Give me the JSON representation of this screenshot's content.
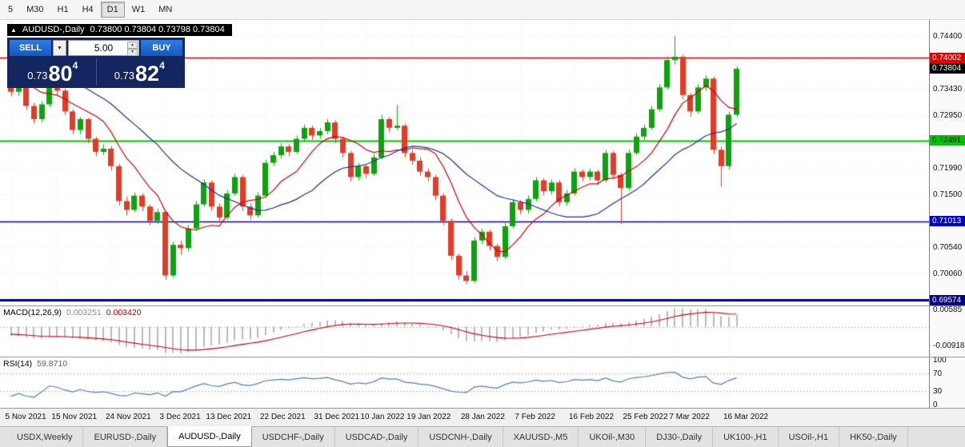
{
  "toolbar": {
    "periods": [
      {
        "label": "5",
        "active": false
      },
      {
        "label": "M30",
        "active": false
      },
      {
        "label": "H1",
        "active": false
      },
      {
        "label": "H4",
        "active": false
      },
      {
        "label": "D1",
        "active": true
      },
      {
        "label": "W1",
        "active": false
      },
      {
        "label": "MN",
        "active": false
      }
    ]
  },
  "window": {
    "title_symbol": "AUDUSD-,Daily",
    "title_ohlc": "0.73800 0.73804 0.73798 0.73804"
  },
  "trade_panel": {
    "sell_label": "SELL",
    "buy_label": "BUY",
    "volume": "5.00",
    "sell_price": {
      "prefix": "0.73",
      "big": "80",
      "sup": "4"
    },
    "buy_price": {
      "prefix": "0.73",
      "big": "82",
      "sup": "4"
    }
  },
  "price_axis": {
    "labels": [
      {
        "text": "0.74400",
        "price": 0.744,
        "style": "plain"
      },
      {
        "text": "0.74002",
        "price": 0.74002,
        "style": "badge",
        "bg": "#e00000",
        "fg": "#ffffff"
      },
      {
        "text": "0.73804",
        "price": 0.73804,
        "style": "badge",
        "bg": "#000000",
        "fg": "#ffffff"
      },
      {
        "text": "0.73430",
        "price": 0.7343,
        "style": "plain"
      },
      {
        "text": "0.72950",
        "price": 0.7295,
        "style": "plain"
      },
      {
        "text": "0.72491",
        "price": 0.72491,
        "style": "badge",
        "bg": "#00c400",
        "fg": "#000000"
      },
      {
        "text": "0.71990",
        "price": 0.7199,
        "style": "plain"
      },
      {
        "text": "0.71500",
        "price": 0.715,
        "style": "plain"
      },
      {
        "text": "0.71013",
        "price": 0.71013,
        "style": "badge",
        "bg": "#0000cc",
        "fg": "#ffffff"
      },
      {
        "text": "0.70540",
        "price": 0.7054,
        "style": "plain"
      },
      {
        "text": "0.70060",
        "price": 0.7006,
        "style": "plain"
      },
      {
        "text": "0.69574",
        "price": 0.69574,
        "style": "badge",
        "bg": "#000080",
        "fg": "#ffffff"
      }
    ]
  },
  "macd_panel": {
    "name": "MACD(12,26,9)",
    "value1": "0.003251",
    "value2": "0.003420",
    "axis_top": "0.00585",
    "axis_bottom": "-0.00918"
  },
  "rsi_panel": {
    "name": "RSI(14)",
    "value": "59.8710",
    "axis": [
      "100",
      "70",
      "30",
      "0"
    ]
  },
  "tabs": [
    {
      "label": "USDX,Weekly",
      "active": false
    },
    {
      "label": "EURUSD-,Daily",
      "active": false
    },
    {
      "label": "AUDUSD-,Daily",
      "active": true
    },
    {
      "label": "USDCHF-,Daily",
      "active": false
    },
    {
      "label": "USDCAD-,Daily",
      "active": false
    },
    {
      "label": "USDCNH-,Daily",
      "active": false
    },
    {
      "label": "XAUUSD-,M5",
      "active": false
    },
    {
      "label": "UKOil-,M30",
      "active": false
    },
    {
      "label": "DJ30-,Daily",
      "active": false
    },
    {
      "label": "UK100-,H1",
      "active": false
    },
    {
      "label": "USOil-,H1",
      "active": false
    },
    {
      "label": "HK50-,Daily",
      "active": false
    }
  ],
  "chart_data": {
    "type": "candlestick",
    "symbol": "AUDUSD-",
    "timeframe": "Daily",
    "current_bid": 0.73804,
    "levels": [
      {
        "price": 0.74002,
        "color": "#e00000",
        "width": 1.3
      },
      {
        "price": 0.72491,
        "color": "#00c400",
        "width": 1.8
      },
      {
        "price": 0.71013,
        "color": "#0000cc",
        "width": 1.3
      },
      {
        "price": 0.69574,
        "color": "#000080",
        "width": 3
      }
    ],
    "grid_prices": [
      0.744,
      0.7392,
      0.7343,
      0.7295,
      0.7247,
      0.7199,
      0.715,
      0.7102,
      0.7054,
      0.7006,
      0.6958
    ],
    "date_labels": [
      {
        "label": "5 Nov 2021",
        "i": 0
      },
      {
        "label": "15 Nov 2021",
        "i": 6
      },
      {
        "label": "24 Nov 2021",
        "i": 13
      },
      {
        "label": "3 Dec 2021",
        "i": 20
      },
      {
        "label": "13 Dec 2021",
        "i": 26
      },
      {
        "label": "22 Dec 2021",
        "i": 33
      },
      {
        "label": "31 Dec 2021",
        "i": 40
      },
      {
        "label": "10 Jan 2022",
        "i": 46
      },
      {
        "label": "19 Jan 2022",
        "i": 52
      },
      {
        "label": "28 Jan 2022",
        "i": 59
      },
      {
        "label": "7 Feb 2022",
        "i": 66
      },
      {
        "label": "16 Feb 2022",
        "i": 73
      },
      {
        "label": "25 Feb 2022",
        "i": 80
      },
      {
        "label": "7 Mar 2022",
        "i": 86
      },
      {
        "label": "16 Mar 2022",
        "i": 93
      }
    ],
    "pre_closes": [
      0.7478,
      0.7496,
      0.7504,
      0.749,
      0.7476,
      0.7464,
      0.7452,
      0.7444,
      0.7452,
      0.7444,
      0.7434,
      0.7428,
      0.7438,
      0.7432,
      0.742,
      0.7412,
      0.7416,
      0.7402,
      0.7394,
      0.7398,
      0.7388,
      0.738,
      0.7384,
      0.7372,
      0.7364,
      0.7356
    ],
    "candles": [
      [
        0.7352,
        0.7362,
        0.733,
        0.7338
      ],
      [
        0.7338,
        0.7354,
        0.733,
        0.7348
      ],
      [
        0.7348,
        0.7352,
        0.7304,
        0.7312
      ],
      [
        0.7312,
        0.7318,
        0.728,
        0.7288
      ],
      [
        0.7288,
        0.732,
        0.7282,
        0.7315
      ],
      [
        0.7315,
        0.7366,
        0.731,
        0.7356
      ],
      [
        0.7356,
        0.7364,
        0.7332,
        0.734
      ],
      [
        0.734,
        0.7344,
        0.7295,
        0.7302
      ],
      [
        0.7302,
        0.7306,
        0.726,
        0.7268
      ],
      [
        0.7268,
        0.7292,
        0.726,
        0.7288
      ],
      [
        0.7288,
        0.729,
        0.7244,
        0.7252
      ],
      [
        0.7252,
        0.7256,
        0.722,
        0.7228
      ],
      [
        0.7228,
        0.7242,
        0.7222,
        0.7234
      ],
      [
        0.7234,
        0.7238,
        0.7194,
        0.7202
      ],
      [
        0.7202,
        0.7206,
        0.713,
        0.7138
      ],
      [
        0.7138,
        0.7146,
        0.7112,
        0.7122
      ],
      [
        0.7122,
        0.7154,
        0.7118,
        0.7148
      ],
      [
        0.7148,
        0.7152,
        0.712,
        0.7128
      ],
      [
        0.7128,
        0.7132,
        0.7094,
        0.7102
      ],
      [
        0.7102,
        0.7124,
        0.7096,
        0.7118
      ],
      [
        0.7118,
        0.712,
        0.6994,
        0.7002
      ],
      [
        0.7002,
        0.7064,
        0.6998,
        0.7058
      ],
      [
        0.7058,
        0.7066,
        0.704,
        0.7052
      ],
      [
        0.7052,
        0.7094,
        0.7046,
        0.7088
      ],
      [
        0.7088,
        0.7138,
        0.7084,
        0.7132
      ],
      [
        0.7132,
        0.7178,
        0.7128,
        0.7172
      ],
      [
        0.7172,
        0.7176,
        0.712,
        0.7128
      ],
      [
        0.7128,
        0.7134,
        0.71,
        0.7108
      ],
      [
        0.7108,
        0.7158,
        0.7104,
        0.7152
      ],
      [
        0.7152,
        0.7188,
        0.7148,
        0.7182
      ],
      [
        0.7182,
        0.7186,
        0.712,
        0.7128
      ],
      [
        0.7128,
        0.7134,
        0.7104,
        0.7112
      ],
      [
        0.7112,
        0.7154,
        0.7108,
        0.7148
      ],
      [
        0.7148,
        0.7214,
        0.7144,
        0.7208
      ],
      [
        0.7208,
        0.7228,
        0.7202,
        0.7222
      ],
      [
        0.7222,
        0.7244,
        0.7216,
        0.7238
      ],
      [
        0.7238,
        0.7242,
        0.722,
        0.7228
      ],
      [
        0.7228,
        0.7258,
        0.7224,
        0.7252
      ],
      [
        0.7252,
        0.7278,
        0.7248,
        0.7272
      ],
      [
        0.7272,
        0.7276,
        0.725,
        0.7258
      ],
      [
        0.7258,
        0.7272,
        0.7252,
        0.7266
      ],
      [
        0.7266,
        0.7288,
        0.726,
        0.7282
      ],
      [
        0.7282,
        0.7286,
        0.7244,
        0.7252
      ],
      [
        0.7252,
        0.7256,
        0.7218,
        0.7226
      ],
      [
        0.7226,
        0.723,
        0.7174,
        0.7182
      ],
      [
        0.7182,
        0.7208,
        0.7176,
        0.7202
      ],
      [
        0.7202,
        0.7206,
        0.718,
        0.7188
      ],
      [
        0.7188,
        0.7224,
        0.7184,
        0.7218
      ],
      [
        0.7218,
        0.7296,
        0.7214,
        0.7288
      ],
      [
        0.7288,
        0.7292,
        0.7264,
        0.7272
      ],
      [
        0.7272,
        0.7314,
        0.7268,
        0.7276
      ],
      [
        0.7276,
        0.728,
        0.7218,
        0.7226
      ],
      [
        0.7226,
        0.7232,
        0.7204,
        0.7212
      ],
      [
        0.7212,
        0.7218,
        0.7184,
        0.7192
      ],
      [
        0.7192,
        0.7198,
        0.7174,
        0.7182
      ],
      [
        0.7182,
        0.7186,
        0.714,
        0.7148
      ],
      [
        0.7148,
        0.7152,
        0.7094,
        0.7102
      ],
      [
        0.7102,
        0.7106,
        0.703,
        0.7038
      ],
      [
        0.7038,
        0.7042,
        0.6994,
        0.7002
      ],
      [
        0.7002,
        0.701,
        0.6986,
        0.6992
      ],
      [
        0.6992,
        0.7072,
        0.6988,
        0.7066
      ],
      [
        0.7066,
        0.7088,
        0.706,
        0.7082
      ],
      [
        0.7082,
        0.7086,
        0.7048,
        0.7056
      ],
      [
        0.7056,
        0.706,
        0.7028,
        0.7036
      ],
      [
        0.7036,
        0.7098,
        0.7032,
        0.7092
      ],
      [
        0.7092,
        0.7142,
        0.7088,
        0.7136
      ],
      [
        0.7136,
        0.714,
        0.7114,
        0.7122
      ],
      [
        0.7122,
        0.7148,
        0.7116,
        0.7142
      ],
      [
        0.7142,
        0.7182,
        0.7138,
        0.7176
      ],
      [
        0.7176,
        0.718,
        0.7148,
        0.7156
      ],
      [
        0.7156,
        0.7178,
        0.715,
        0.7172
      ],
      [
        0.7172,
        0.7176,
        0.7128,
        0.7136
      ],
      [
        0.7136,
        0.7158,
        0.713,
        0.7152
      ],
      [
        0.7152,
        0.7198,
        0.7148,
        0.7192
      ],
      [
        0.7192,
        0.7196,
        0.7174,
        0.7182
      ],
      [
        0.7182,
        0.7198,
        0.7176,
        0.7192
      ],
      [
        0.7192,
        0.7196,
        0.7168,
        0.7176
      ],
      [
        0.7176,
        0.7232,
        0.7172,
        0.7226
      ],
      [
        0.7226,
        0.723,
        0.7178,
        0.7186
      ],
      [
        0.7186,
        0.719,
        0.7096,
        0.7162
      ],
      [
        0.7162,
        0.7232,
        0.7158,
        0.7226
      ],
      [
        0.7226,
        0.7262,
        0.7222,
        0.7256
      ],
      [
        0.7256,
        0.7278,
        0.725,
        0.7272
      ],
      [
        0.7272,
        0.7312,
        0.7268,
        0.7306
      ],
      [
        0.7306,
        0.7352,
        0.7302,
        0.7346
      ],
      [
        0.7346,
        0.7402,
        0.7342,
        0.7396
      ],
      [
        0.7396,
        0.744,
        0.7388,
        0.7402
      ],
      [
        0.7402,
        0.7406,
        0.7324,
        0.7332
      ],
      [
        0.7332,
        0.7336,
        0.7292,
        0.7302
      ],
      [
        0.7302,
        0.7352,
        0.7298,
        0.7346
      ],
      [
        0.7346,
        0.7368,
        0.734,
        0.7362
      ],
      [
        0.7362,
        0.7366,
        0.7224,
        0.7232
      ],
      [
        0.7232,
        0.7238,
        0.7164,
        0.7202
      ],
      [
        0.7202,
        0.7302,
        0.7196,
        0.7296
      ],
      [
        0.7296,
        0.7385,
        0.7292,
        0.738
      ]
    ],
    "ma_fast_period": 8,
    "ma_slow_period": 20,
    "macd": {
      "fast": 12,
      "slow": 26,
      "signal": 9
    },
    "rsi_period": 14,
    "colors": {
      "up": "#0ea30e",
      "down": "#e23b26",
      "ma_fast": "#cc0000",
      "ma_slow": "#1a2f9e",
      "macd_hist": "#b9b9b9",
      "macd_signal": "#cc0000",
      "rsi": "#4f7dc0",
      "grid": "#e7e7e7",
      "level_dash": "#c0c0c0"
    }
  }
}
